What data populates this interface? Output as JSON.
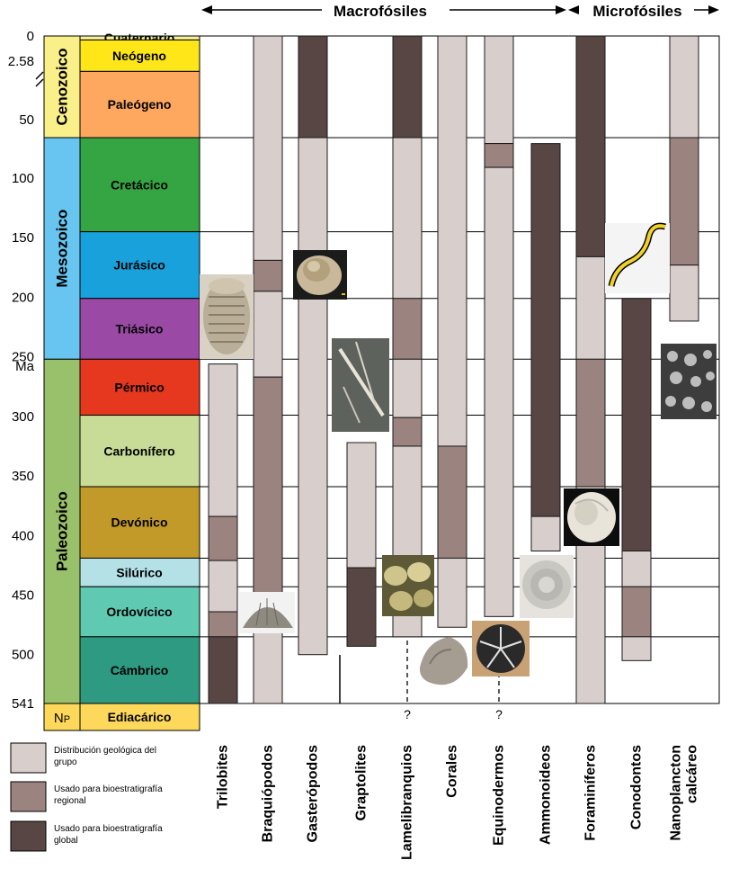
{
  "chart_data": {
    "type": "range-bar",
    "header": {
      "macro_label": "Macrofósiles",
      "micro_label": "Microfósiles"
    },
    "axis": {
      "unit": "Ma",
      "ticks": [
        0,
        2.58,
        50,
        100,
        150,
        200,
        250,
        300,
        350,
        400,
        450,
        500,
        541
      ],
      "tick_labels": [
        "0",
        "2.58",
        "50",
        "100",
        "150",
        "200",
        "250",
        "300",
        "350",
        "400",
        "450",
        "500",
        "541"
      ],
      "range": [
        0,
        541
      ]
    },
    "eras": [
      {
        "name": "Cenozoico",
        "from": 0,
        "to": 66,
        "color": "#f9f08a"
      },
      {
        "name": "Mesozoico",
        "from": 66,
        "to": 252,
        "color": "#67c5ef"
      },
      {
        "name": "Paleozoico",
        "from": 252,
        "to": 541,
        "color": "#99c06a"
      },
      {
        "name": "NP",
        "from": 541,
        "to": 560,
        "color": "#fdd85a"
      }
    ],
    "periods": [
      {
        "name": "Cuaternario",
        "from": 0,
        "to": 2.58,
        "color": "#f9f29d"
      },
      {
        "name": "Neógeno",
        "from": 2.58,
        "to": 23,
        "color": "#ffe619"
      },
      {
        "name": "Paleógeno",
        "from": 23,
        "to": 66,
        "color": "#fda75f"
      },
      {
        "name": "Cretácico",
        "from": 66,
        "to": 145,
        "color": "#34a542"
      },
      {
        "name": "Jurásico",
        "from": 145,
        "to": 201,
        "color": "#19a1dc"
      },
      {
        "name": "Triásico",
        "from": 201,
        "to": 252,
        "color": "#9a4aa4"
      },
      {
        "name": "Pérmico",
        "from": 252,
        "to": 299,
        "color": "#e5381f"
      },
      {
        "name": "Carbonífero",
        "from": 299,
        "to": 359,
        "color": "#c9dc97"
      },
      {
        "name": "Devónico",
        "from": 359,
        "to": 419,
        "color": "#c29a2a"
      },
      {
        "name": "Silúrico",
        "from": 419,
        "to": 443,
        "color": "#b3e1e6"
      },
      {
        "name": "Ordovícico",
        "from": 443,
        "to": 485,
        "color": "#60c9b2"
      },
      {
        "name": "Cámbrico",
        "from": 485,
        "to": 541,
        "color": "#2e9a81"
      },
      {
        "name": "Ediacárico",
        "from": 541,
        "to": 560,
        "color": "#fdd85a"
      }
    ],
    "legend": [
      {
        "key": "dist",
        "text": "Distribución geológica del grupo",
        "color": "#d8cfcd"
      },
      {
        "key": "reg",
        "text": "Usado para bioestratigrafía regional",
        "color": "#9b837f"
      },
      {
        "key": "glob",
        "text": "Usado para bioestratigrafía global",
        "color": "#574644"
      }
    ],
    "groups": [
      {
        "name": "Trilobites",
        "segments": [
          {
            "from": 256,
            "to": 384,
            "use": "dist"
          },
          {
            "from": 384,
            "to": 421,
            "use": "reg"
          },
          {
            "from": 421,
            "to": 464,
            "use": "dist"
          },
          {
            "from": 464,
            "to": 485,
            "use": "reg"
          },
          {
            "from": 485,
            "to": 541,
            "use": "glob"
          }
        ]
      },
      {
        "name": "Braquiópodos",
        "segments": [
          {
            "from": 0,
            "to": 169,
            "use": "dist"
          },
          {
            "from": 169,
            "to": 195,
            "use": "reg"
          },
          {
            "from": 195,
            "to": 267,
            "use": "dist"
          },
          {
            "from": 267,
            "to": 451,
            "use": "reg"
          },
          {
            "from": 451,
            "to": 541,
            "use": "dist"
          }
        ]
      },
      {
        "name": "Gasterópodos",
        "segments": [
          {
            "from": 0,
            "to": 66,
            "use": "glob"
          },
          {
            "from": 66,
            "to": 500,
            "use": "dist"
          }
        ]
      },
      {
        "name": "Graptolites",
        "segments": [
          {
            "from": 322,
            "to": 427,
            "use": "dist"
          },
          {
            "from": 427,
            "to": 493,
            "use": "glob"
          }
        ]
      },
      {
        "name": "Lamelibranquios",
        "segments": [
          {
            "from": 0,
            "to": 66,
            "use": "glob"
          },
          {
            "from": 66,
            "to": 201,
            "use": "dist"
          },
          {
            "from": 201,
            "to": 252,
            "use": "reg"
          },
          {
            "from": 252,
            "to": 301,
            "use": "dist"
          },
          {
            "from": 301,
            "to": 325,
            "use": "reg"
          },
          {
            "from": 325,
            "to": 485,
            "use": "dist"
          }
        ]
      },
      {
        "name": "Corales",
        "segments": [
          {
            "from": 0,
            "to": 325,
            "use": "dist"
          },
          {
            "from": 325,
            "to": 419,
            "use": "reg"
          },
          {
            "from": 419,
            "to": 477,
            "use": "dist"
          }
        ]
      },
      {
        "name": "Equinodermos",
        "segments": [
          {
            "from": 0,
            "to": 71,
            "use": "dist"
          },
          {
            "from": 71,
            "to": 91,
            "use": "reg"
          },
          {
            "from": 91,
            "to": 468,
            "use": "dist"
          }
        ]
      },
      {
        "name": "Ammonoideos",
        "segments": [
          {
            "from": 71,
            "to": 384,
            "use": "glob"
          },
          {
            "from": 384,
            "to": 413,
            "use": "dist"
          }
        ]
      },
      {
        "name": "Foraminíferos",
        "segments": [
          {
            "from": 0,
            "to": 166,
            "use": "glob"
          },
          {
            "from": 166,
            "to": 252,
            "use": "dist"
          },
          {
            "from": 252,
            "to": 359,
            "use": "reg"
          },
          {
            "from": 359,
            "to": 541,
            "use": "dist"
          }
        ]
      },
      {
        "name": "Conodontos",
        "segments": [
          {
            "from": 201,
            "to": 413,
            "use": "glob"
          },
          {
            "from": 413,
            "to": 443,
            "use": "dist"
          },
          {
            "from": 443,
            "to": 485,
            "use": "reg"
          },
          {
            "from": 485,
            "to": 505,
            "use": "dist"
          }
        ]
      },
      {
        "name": "Nanoplancton calcáreo",
        "segments": [
          {
            "from": 0,
            "to": 66,
            "use": "dist"
          },
          {
            "from": 66,
            "to": 173,
            "use": "reg"
          },
          {
            "from": 173,
            "to": 220,
            "use": "dist"
          }
        ]
      }
    ],
    "uncertain_marks": [
      {
        "group": "Lamelibranquios",
        "label": "?"
      },
      {
        "group": "Equinodermos",
        "label": "?"
      }
    ],
    "fossil_images": [
      {
        "name": "trilobite-photo"
      },
      {
        "name": "brachiopod-photo"
      },
      {
        "name": "gastropod-photo"
      },
      {
        "name": "graptolite-photo"
      },
      {
        "name": "bivalve-photo"
      },
      {
        "name": "coral-photo"
      },
      {
        "name": "echinoid-photo"
      },
      {
        "name": "ammonite-photo"
      },
      {
        "name": "foraminifer-photo"
      },
      {
        "name": "conodont-animal-drawing"
      },
      {
        "name": "nannoplankton-photo"
      }
    ]
  }
}
